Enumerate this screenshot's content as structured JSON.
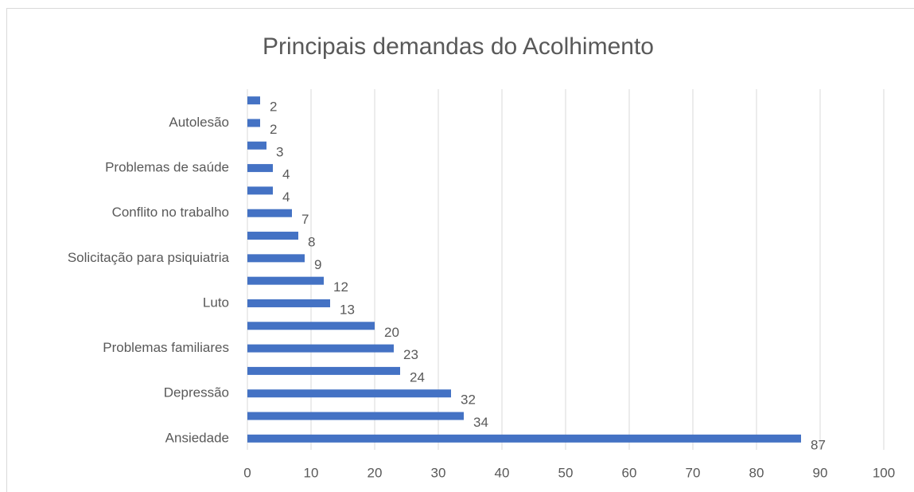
{
  "chart_data": {
    "type": "bar",
    "orientation": "horizontal",
    "title": "Principais demandas do Acolhimento",
    "categories": [
      "Ansiedade",
      null,
      "Depressão",
      null,
      "Problemas familiares",
      null,
      "Luto",
      null,
      "Solicitação para psiquiatria",
      null,
      "Conflito no trabalho",
      null,
      "Problemas de saúde",
      null,
      "Autolesão",
      null
    ],
    "values": [
      87,
      34,
      32,
      24,
      23,
      20,
      13,
      12,
      9,
      8,
      7,
      4,
      4,
      3,
      2,
      2
    ],
    "color": "#4472c4",
    "xlim": [
      0,
      100
    ],
    "xticks": [
      0,
      10,
      20,
      30,
      40,
      50,
      60,
      70,
      80,
      90,
      100
    ],
    "grid": true
  }
}
